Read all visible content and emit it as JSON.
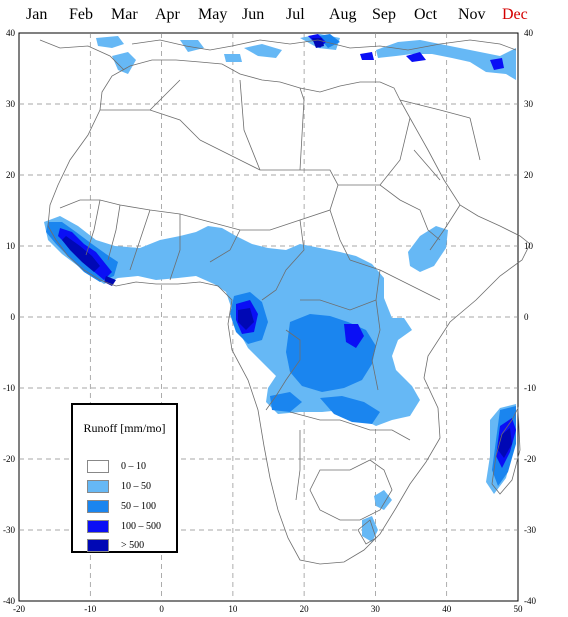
{
  "months": [
    {
      "label": "Jan",
      "active": false
    },
    {
      "label": "Feb",
      "active": false
    },
    {
      "label": "Mar",
      "active": false
    },
    {
      "label": "Apr",
      "active": false
    },
    {
      "label": "May",
      "active": false
    },
    {
      "label": "Jun",
      "active": false
    },
    {
      "label": "Jul",
      "active": false
    },
    {
      "label": "Aug",
      "active": false
    },
    {
      "label": "Sep",
      "active": false
    },
    {
      "label": "Oct",
      "active": false
    },
    {
      "label": "Nov",
      "active": false
    },
    {
      "label": "Dec",
      "active": true
    }
  ],
  "map": {
    "x_ticks": [
      "-20",
      "-10",
      "0",
      "10",
      "20",
      "30",
      "40",
      "50"
    ],
    "y_ticks_left": [
      "40",
      "30",
      "20",
      "10",
      "0",
      "-10",
      "-20",
      "-30",
      "-40"
    ],
    "y_ticks_right": [
      "40",
      "30",
      "20",
      "10",
      "0",
      "-10",
      "-20",
      "-30",
      "-40"
    ]
  },
  "legend": {
    "title": "Runoff [mm/mo]",
    "classes": [
      {
        "label": "0  –  10",
        "color": "#ffffff"
      },
      {
        "label": "10  –  50",
        "color": "#66b8f5"
      },
      {
        "label": "50  –  100",
        "color": "#1a85ef"
      },
      {
        "label": "100  –  500",
        "color": "#0a0ff5"
      },
      {
        "label": "> 500",
        "color": "#0008b5"
      }
    ]
  },
  "colors": {
    "light": "#66b8f5",
    "medium": "#1a85ef",
    "strong": "#0a0ff5",
    "max": "#0008b5",
    "line": "#6e6e6e"
  }
}
